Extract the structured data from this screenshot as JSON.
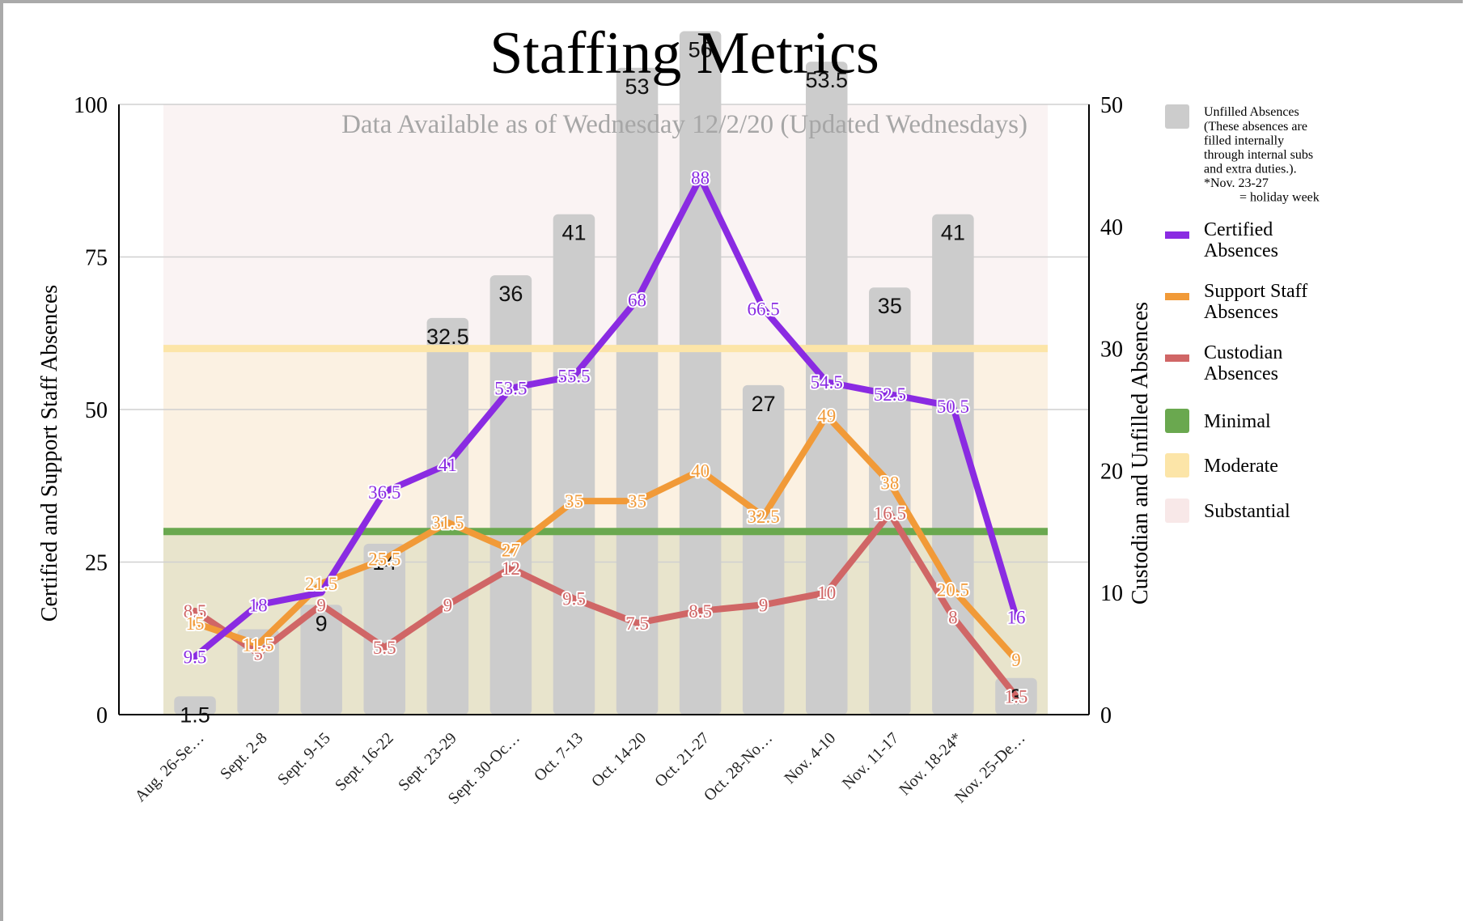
{
  "chart_data": {
    "type": "bar+line",
    "title": "Staffing Metrics",
    "subtitle": "Data Available as of Wednesday 12/2/20 (Updated Wednesdays)",
    "ylabel_left": "Certified and Support Staff Absences",
    "ylabel_right": "Custodian and Unfilled Absences",
    "ylim_left": [
      0,
      100
    ],
    "ylim_right": [
      0,
      50
    ],
    "yticks_left": [
      "0",
      "25",
      "50",
      "75",
      "100"
    ],
    "yticks_right": [
      "0",
      "10",
      "20",
      "30",
      "40",
      "50"
    ],
    "grid": true,
    "legend_position": "right",
    "categories": [
      "Aug. 26-Se…",
      "Sept. 2-8",
      "Sept. 9-15",
      "Sept. 16-22",
      "Sept. 23-29",
      "Sept. 30-Oc…",
      "Oct. 7-13",
      "Oct. 14-20",
      "Oct. 21-27",
      "Oct. 28-No…",
      "Nov. 4-10",
      "Nov. 11-17",
      "Nov. 18-24*",
      "Nov. 25-De…"
    ],
    "bands": [
      {
        "name": "Minimal",
        "from": 0,
        "to": 30,
        "color": "#e8e4cc",
        "line_color": "#6aa84f"
      },
      {
        "name": "Moderate",
        "from": 30,
        "to": 60,
        "color": "#fbf1e2",
        "line_color": "#fce5a8"
      },
      {
        "name": "Substantial",
        "from": 60,
        "to": 100,
        "color": "#faf3f3"
      }
    ],
    "bar_series": {
      "name": "Unfilled Absences",
      "axis": "right",
      "color": "#cccccc",
      "values": [
        1.5,
        7,
        9,
        14,
        32.5,
        36,
        41,
        53,
        56,
        27,
        53.5,
        35,
        41,
        3
      ],
      "labels": [
        "1.5",
        "",
        "9",
        "14",
        "32.5",
        "36",
        "41",
        "53",
        "56",
        "27",
        "53.5",
        "35",
        "41",
        "3"
      ]
    },
    "series": [
      {
        "name": "Certified Absences",
        "axis": "left",
        "color": "#8a2be2",
        "values": [
          9.5,
          18,
          20,
          36.5,
          41,
          53.5,
          55.5,
          68,
          88,
          66.5,
          54.5,
          52.5,
          50.5,
          16
        ],
        "labels": [
          "9.5",
          "18",
          "",
          "36.5",
          "41",
          "53.5",
          "55.5",
          "68",
          "88",
          "66.5",
          "54.5",
          "52.5",
          "50.5",
          "16"
        ]
      },
      {
        "name": "Support Staff Absences",
        "axis": "left",
        "color": "#f19a38",
        "values": [
          15,
          11.5,
          21.5,
          25.5,
          31.5,
          27,
          35,
          35,
          40,
          32.5,
          49,
          38,
          20.5,
          9
        ],
        "labels": [
          "15",
          "11.5",
          "21.5",
          "25.5",
          "31.5",
          "27",
          "35",
          "35",
          "40",
          "32.5",
          "49",
          "38",
          "20.5",
          "9"
        ]
      },
      {
        "name": "Custodian Absences",
        "axis": "right",
        "color": "#d06666",
        "values": [
          8.5,
          5,
          9,
          5.5,
          9,
          12,
          9.5,
          7.5,
          8.5,
          9,
          10,
          16.5,
          8,
          1.5
        ],
        "labels": [
          "8.5",
          "5",
          "9",
          "5.5",
          "9",
          "12",
          "9.5",
          "7.5",
          "8.5",
          "9",
          "10",
          "16.5",
          "8",
          "1.5"
        ]
      }
    ],
    "legend": [
      {
        "name": "Unfilled Absences",
        "note_lines": [
          "(These absences are",
          "filled internally",
          "through internal subs",
          "and extra duties.).",
          "*Nov. 23-27",
          "= holiday week"
        ],
        "color": "#cccccc"
      },
      {
        "name_lines": [
          "Certified",
          "Absences"
        ],
        "color": "#8a2be2"
      },
      {
        "name_lines": [
          "Support Staff",
          "Absences"
        ],
        "color": "#f19a38"
      },
      {
        "name_lines": [
          "Custodian",
          "Absences"
        ],
        "color": "#d06666"
      },
      {
        "name_lines": [
          "Minimal"
        ],
        "color": "#6aa84f"
      },
      {
        "name_lines": [
          "Moderate"
        ],
        "color": "#fce5a8"
      },
      {
        "name_lines": [
          "Substantial"
        ],
        "color": "#f8e8e8"
      }
    ]
  }
}
